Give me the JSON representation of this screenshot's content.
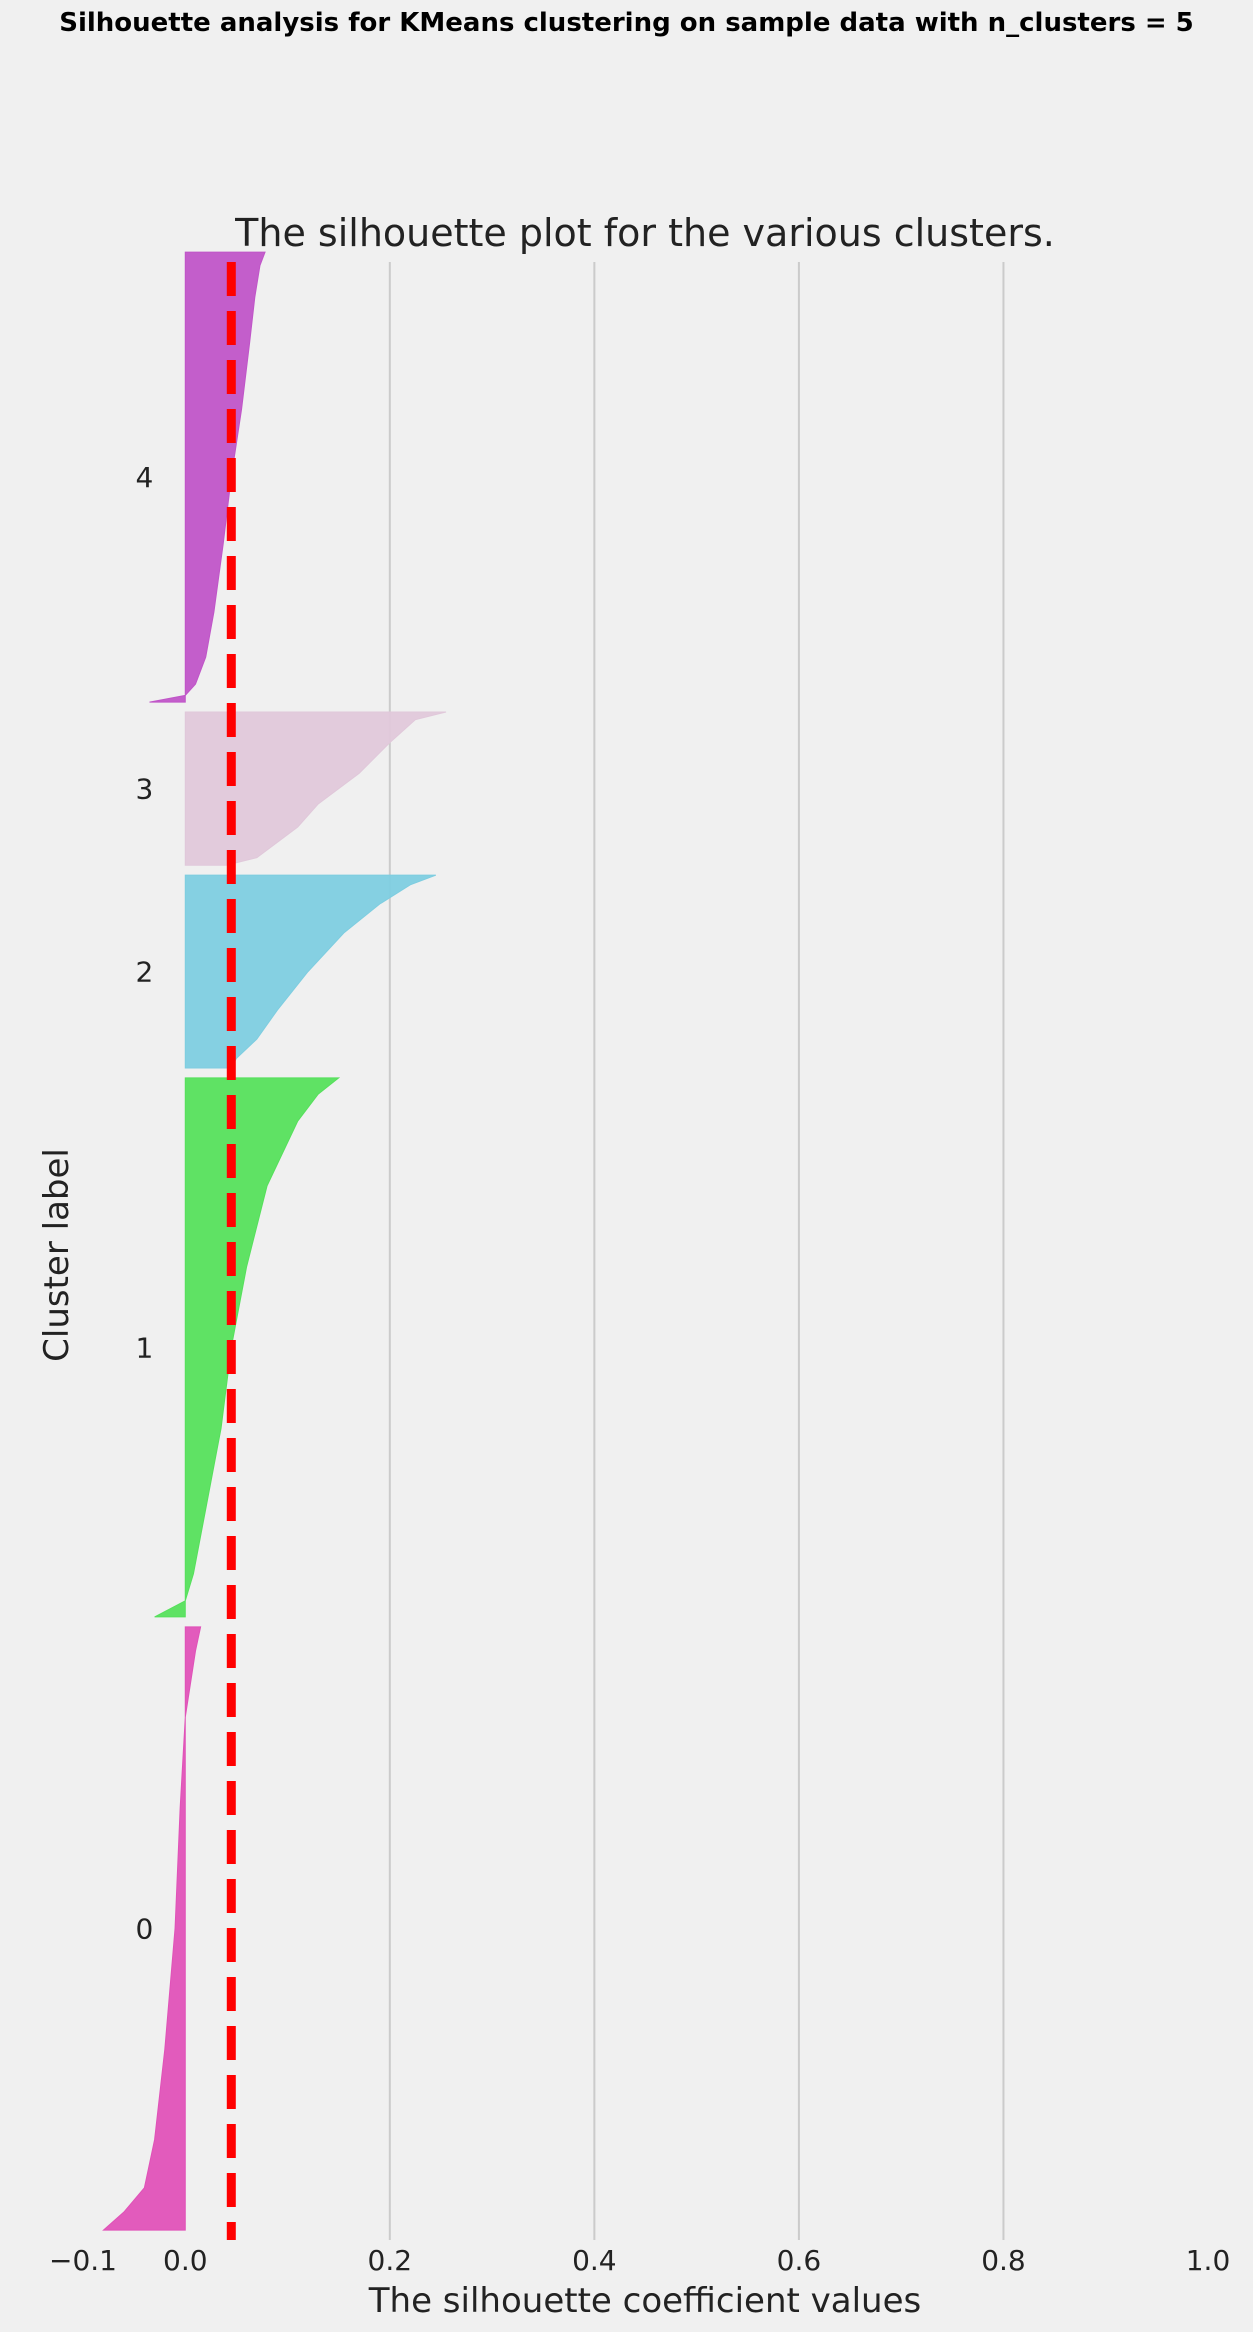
{
  "suptitle": "Silhouette analysis for KMeans clustering on sample data with n_clusters = 5",
  "chart_data": {
    "type": "area",
    "title": "The silhouette plot for the various clusters.",
    "xlabel": "The silhouette coefficient values",
    "ylabel": "Cluster label",
    "xlim": [
      -0.1,
      1.0
    ],
    "xticks": [
      -0.1,
      0.0,
      0.2,
      0.4,
      0.6,
      0.8,
      1.0
    ],
    "xtick_labels": [
      "−0.1",
      "0.0",
      "0.2",
      "0.4",
      "0.6",
      "0.8",
      "1.0"
    ],
    "ylim": [
      0,
      2000
    ],
    "grid": "vertical lines only",
    "average_silhouette_score": 0.045,
    "average_line_color": "#ff0000",
    "clusters": [
      {
        "label": "0",
        "y_lower": 10,
        "y_upper": 620,
        "color": "#e052b8",
        "profile": [
          [
            0,
            0.015
          ],
          [
            0.04,
            0.01
          ],
          [
            0.15,
            0.0
          ],
          [
            0.3,
            -0.005
          ],
          [
            0.5,
            -0.01
          ],
          [
            0.7,
            -0.02
          ],
          [
            0.85,
            -0.03
          ],
          [
            0.93,
            -0.04
          ],
          [
            0.97,
            -0.06
          ],
          [
            1,
            -0.08
          ]
        ]
      },
      {
        "label": "1",
        "y_lower": 630,
        "y_upper": 1175,
        "color": "#56e05c",
        "profile": [
          [
            0,
            0.15
          ],
          [
            0.03,
            0.13
          ],
          [
            0.08,
            0.11
          ],
          [
            0.2,
            0.08
          ],
          [
            0.35,
            0.06
          ],
          [
            0.5,
            0.045
          ],
          [
            0.65,
            0.035
          ],
          [
            0.8,
            0.02
          ],
          [
            0.92,
            0.008
          ],
          [
            0.97,
            0.0
          ],
          [
            0.99,
            -0.02
          ],
          [
            1,
            -0.03
          ]
        ]
      },
      {
        "label": "2",
        "y_lower": 1185,
        "y_upper": 1380,
        "color": "#7ecde0",
        "profile": [
          [
            0,
            0.245
          ],
          [
            0.05,
            0.22
          ],
          [
            0.15,
            0.19
          ],
          [
            0.3,
            0.155
          ],
          [
            0.5,
            0.12
          ],
          [
            0.7,
            0.09
          ],
          [
            0.85,
            0.07
          ],
          [
            0.95,
            0.05
          ],
          [
            1,
            0.045
          ]
        ]
      },
      {
        "label": "3",
        "y_lower": 1390,
        "y_upper": 1545,
        "color": "#e0c8da",
        "profile": [
          [
            0,
            0.255
          ],
          [
            0.05,
            0.225
          ],
          [
            0.2,
            0.2
          ],
          [
            0.4,
            0.17
          ],
          [
            0.6,
            0.13
          ],
          [
            0.75,
            0.11
          ],
          [
            0.85,
            0.09
          ],
          [
            0.95,
            0.07
          ],
          [
            1,
            0.04
          ]
        ]
      },
      {
        "label": "4",
        "y_lower": 1555,
        "y_upper": 2010,
        "color": "#c055c8",
        "profile": [
          [
            0,
            0.078
          ],
          [
            0.03,
            0.073
          ],
          [
            0.1,
            0.068
          ],
          [
            0.2,
            0.063
          ],
          [
            0.35,
            0.055
          ],
          [
            0.5,
            0.045
          ],
          [
            0.65,
            0.037
          ],
          [
            0.8,
            0.028
          ],
          [
            0.9,
            0.02
          ],
          [
            0.96,
            0.01
          ],
          [
            0.985,
            0.0
          ],
          [
            1,
            -0.035
          ]
        ]
      }
    ]
  }
}
